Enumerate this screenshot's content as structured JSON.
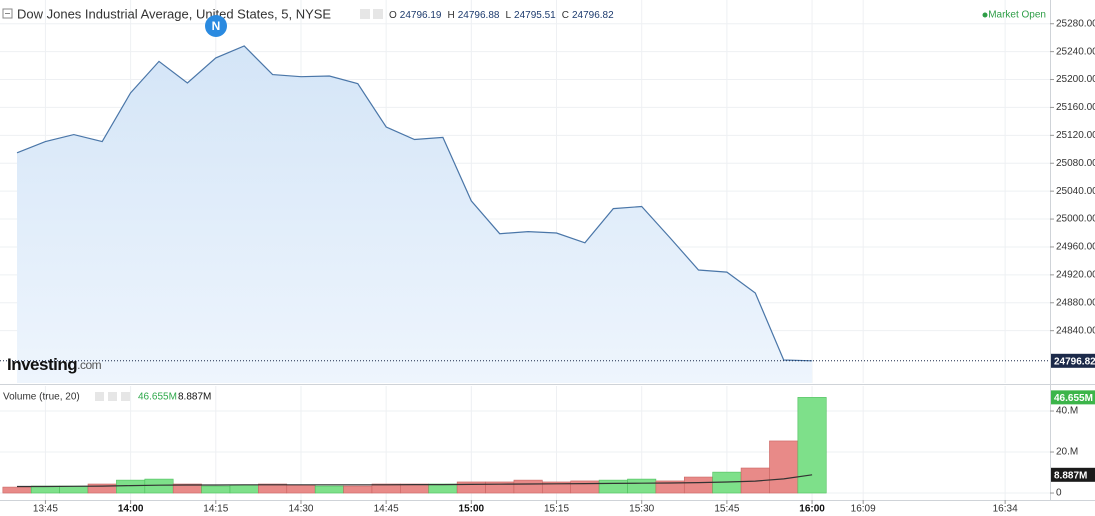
{
  "chart_data": [
    {
      "type": "area",
      "title": "Dow Jones Industrial Average, United States, 5, NYSE",
      "status": "Market Open",
      "news_badge": "N",
      "watermark": "Investing",
      "watermark_suffix": ".com",
      "ohlc": [
        {
          "label": "O",
          "value": 24796.19
        },
        {
          "label": "H",
          "value": 24796.88
        },
        {
          "label": "L",
          "value": 24795.51
        },
        {
          "label": "C",
          "value": 24796.82
        }
      ],
      "x": [
        820,
        825,
        830,
        835,
        840,
        845,
        850,
        855,
        860,
        865,
        870,
        875,
        880,
        885,
        890,
        895,
        900,
        905,
        910,
        915,
        920,
        925,
        930,
        935,
        940,
        945,
        950,
        955,
        960
      ],
      "values": [
        25095,
        25111,
        25121,
        25111,
        25181,
        25226,
        25195,
        25231,
        25248,
        25207,
        25204,
        25205,
        25194,
        25132,
        25114,
        25117,
        25026,
        24979,
        24982,
        24980,
        24966,
        25015,
        25018,
        24973,
        24927,
        24924,
        24894,
        24798,
        24796.82
      ],
      "color": "#4a76a8",
      "xlim": [
        817,
        1001.9
      ],
      "xticks": [
        {
          "value": 825,
          "label": "13:45"
        },
        {
          "value": 840,
          "label": "14:00"
        },
        {
          "value": 855,
          "label": "14:15"
        },
        {
          "value": 870,
          "label": "14:30"
        },
        {
          "value": 885,
          "label": "14:45"
        },
        {
          "value": 900,
          "label": "15:00"
        },
        {
          "value": 915,
          "label": "15:15"
        },
        {
          "value": 930,
          "label": "15:30"
        },
        {
          "value": 945,
          "label": "15:45"
        },
        {
          "value": 960,
          "label": "16:00"
        },
        {
          "value": 969,
          "label": "16:09"
        },
        {
          "value": 994,
          "label": "16:34"
        }
      ],
      "ylim": [
        24765,
        25314
      ],
      "yticks": [
        {
          "value": 24840,
          "label": "24840.00"
        },
        {
          "value": 24880,
          "label": "24880.00"
        },
        {
          "value": 24920,
          "label": "24920.00"
        },
        {
          "value": 24960,
          "label": "24960.00"
        },
        {
          "value": 25000,
          "label": "25000.00"
        },
        {
          "value": 25040,
          "label": "25040.00"
        },
        {
          "value": 25080,
          "label": "25080.00"
        },
        {
          "value": 25120,
          "label": "25120.00"
        },
        {
          "value": 25160,
          "label": "25160.00"
        },
        {
          "value": 25200,
          "label": "25200.00"
        },
        {
          "value": 25240,
          "label": "25240.00"
        },
        {
          "value": 25280,
          "label": "25280.00"
        }
      ],
      "grid": true
    },
    {
      "type": "bar",
      "title": "Volume (true, 20)",
      "x": [
        820,
        825,
        830,
        835,
        840,
        845,
        850,
        855,
        860,
        865,
        870,
        875,
        880,
        885,
        890,
        895,
        900,
        905,
        910,
        915,
        920,
        925,
        930,
        935,
        940,
        945,
        950,
        955,
        960
      ],
      "values": [
        2.9,
        3.4,
        3.4,
        4.4,
        6.3,
        6.8,
        4.4,
        3.4,
        3.9,
        4.4,
        3.9,
        3.4,
        3.4,
        4.4,
        4.4,
        4.4,
        5.4,
        5.4,
        6.3,
        5.4,
        5.9,
        6.3,
        6.8,
        5.9,
        7.8,
        10.2,
        12.2,
        25.4,
        46.655
      ],
      "colors": [
        "#e88a88",
        "#7ee08a",
        "#7ee08a",
        "#e88a88",
        "#7ee08a",
        "#7ee08a",
        "#e88a88",
        "#7ee08a",
        "#7ee08a",
        "#e88a88",
        "#e88a88",
        "#7ee08a",
        "#e88a88",
        "#e88a88",
        "#e88a88",
        "#7ee08a",
        "#e88a88",
        "#e88a88",
        "#e88a88",
        "#e88a88",
        "#e88a88",
        "#7ee08a",
        "#7ee08a",
        "#e88a88",
        "#e88a88",
        "#7ee08a",
        "#e88a88",
        "#e88a88",
        "#7ee08a"
      ],
      "ma_values": [
        3.2,
        3.2,
        3.3,
        3.4,
        3.6,
        3.8,
        3.9,
        3.9,
        4.0,
        4.0,
        4.0,
        4.0,
        4.0,
        4.0,
        4.1,
        4.1,
        4.2,
        4.3,
        4.4,
        4.5,
        4.6,
        4.7,
        4.8,
        4.9,
        5.1,
        5.4,
        5.8,
        6.9,
        8.887
      ],
      "ma_color": "#333333",
      "volume_last": {
        "value": 46.655,
        "label": "46.655M"
      },
      "ma_last": {
        "value": 8.887,
        "label": "8.887M"
      },
      "ylim": [
        -3.4,
        52.2
      ],
      "yticks": [
        0,
        {
          "value": 20,
          "label": "20.M"
        },
        {
          "value": 40,
          "label": "40.M"
        }
      ],
      "grid": true
    }
  ]
}
